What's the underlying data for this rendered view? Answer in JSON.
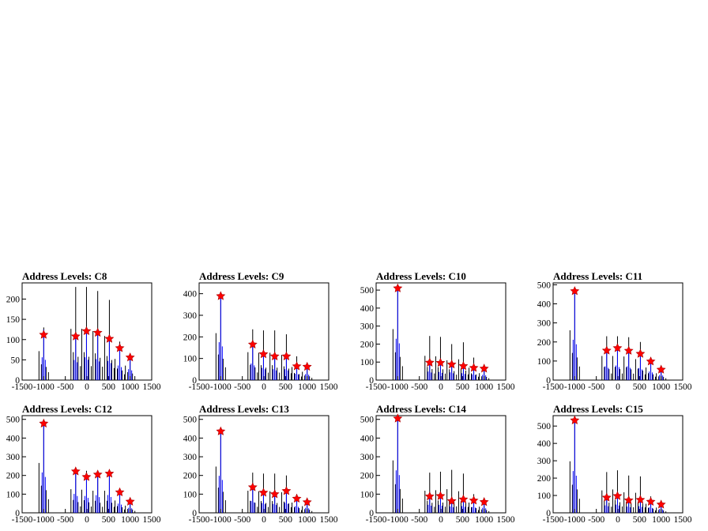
{
  "chart_data": [
    {
      "type": "bar",
      "title": "Address Levels: C8",
      "xlim": [
        -1500,
        1500
      ],
      "ylim": [
        0,
        240
      ],
      "xticks": [
        -1500,
        -1000,
        -500,
        0,
        500,
        1000,
        1500
      ],
      "yticks": [
        0,
        50,
        100,
        150,
        200
      ],
      "peaks_black": [
        [
          -1000,
          130
        ],
        [
          -260,
          230
        ],
        [
          -10,
          230
        ],
        [
          250,
          220
        ],
        [
          520,
          198
        ],
        [
          760,
          95
        ],
        [
          1000,
          65
        ]
      ],
      "peaks_blue": [
        [
          -1000,
          125
        ],
        [
          -260,
          110
        ],
        [
          -10,
          125
        ],
        [
          250,
          115
        ],
        [
          520,
          105
        ],
        [
          760,
          80
        ],
        [
          1000,
          60
        ]
      ],
      "markers": [
        [
          -1000,
          112
        ],
        [
          -260,
          108
        ],
        [
          -10,
          121
        ],
        [
          250,
          117
        ],
        [
          520,
          102
        ],
        [
          760,
          79
        ],
        [
          1000,
          56
        ]
      ]
    },
    {
      "type": "bar",
      "title": "Address Levels: C9",
      "xlim": [
        -1500,
        1500
      ],
      "ylim": [
        0,
        450
      ],
      "xticks": [
        -1500,
        -1000,
        -500,
        0,
        500,
        1000,
        1500
      ],
      "yticks": [
        0,
        100,
        200,
        300,
        400
      ],
      "peaks_black": [
        [
          -1000,
          395
        ],
        [
          -260,
          235
        ],
        [
          -10,
          230
        ],
        [
          250,
          230
        ],
        [
          520,
          212
        ],
        [
          760,
          110
        ],
        [
          1000,
          70
        ]
      ],
      "peaks_blue": [
        [
          -1000,
          390
        ],
        [
          -260,
          170
        ],
        [
          -10,
          125
        ],
        [
          250,
          112
        ],
        [
          520,
          112
        ],
        [
          760,
          65
        ],
        [
          1000,
          62
        ]
      ],
      "markers": [
        [
          -1000,
          389
        ],
        [
          -260,
          165
        ],
        [
          -10,
          120
        ],
        [
          250,
          110
        ],
        [
          520,
          110
        ],
        [
          760,
          64
        ],
        [
          1000,
          62
        ]
      ]
    },
    {
      "type": "bar",
      "title": "Address Levels: C10",
      "xlim": [
        -1500,
        1500
      ],
      "ylim": [
        0,
        540
      ],
      "xticks": [
        -1500,
        -1000,
        -500,
        0,
        500,
        1000,
        1500
      ],
      "yticks": [
        0,
        100,
        200,
        300,
        400,
        500
      ],
      "peaks_black": [
        [
          -1000,
          515
        ],
        [
          -260,
          245
        ],
        [
          -10,
          240
        ],
        [
          250,
          200
        ],
        [
          520,
          210
        ],
        [
          760,
          125
        ],
        [
          1000,
          70
        ]
      ],
      "peaks_blue": [
        [
          -1000,
          510
        ],
        [
          -260,
          105
        ],
        [
          -10,
          100
        ],
        [
          250,
          95
        ],
        [
          520,
          85
        ],
        [
          760,
          70
        ],
        [
          1000,
          65
        ]
      ],
      "markers": [
        [
          -1000,
          510
        ],
        [
          -260,
          97
        ],
        [
          -10,
          96
        ],
        [
          250,
          87
        ],
        [
          520,
          78
        ],
        [
          760,
          68
        ],
        [
          1000,
          64
        ]
      ]
    },
    {
      "type": "bar",
      "title": "Address Levels: C11",
      "xlim": [
        -1500,
        1500
      ],
      "ylim": [
        0,
        510
      ],
      "xticks": [
        -1500,
        -1000,
        -500,
        0,
        500,
        1000,
        1500
      ],
      "yticks": [
        0,
        100,
        200,
        300,
        400,
        500
      ],
      "peaks_black": [
        [
          -1000,
          475
        ],
        [
          -260,
          230
        ],
        [
          -10,
          230
        ],
        [
          250,
          225
        ],
        [
          520,
          200
        ],
        [
          760,
          120
        ],
        [
          1000,
          65
        ]
      ],
      "peaks_blue": [
        [
          -1000,
          470
        ],
        [
          -260,
          160
        ],
        [
          -10,
          170
        ],
        [
          250,
          160
        ],
        [
          520,
          140
        ],
        [
          760,
          100
        ],
        [
          1000,
          60
        ]
      ],
      "markers": [
        [
          -1000,
          467
        ],
        [
          -260,
          155
        ],
        [
          -10,
          168
        ],
        [
          250,
          154
        ],
        [
          520,
          138
        ],
        [
          760,
          98
        ],
        [
          1000,
          55
        ]
      ]
    },
    {
      "type": "bar",
      "title": "Address Levels: C12",
      "xlim": [
        -1500,
        1500
      ],
      "ylim": [
        0,
        520
      ],
      "xticks": [
        -1500,
        -1000,
        -500,
        0,
        500,
        1000,
        1500
      ],
      "yticks": [
        0,
        100,
        200,
        300,
        400,
        500
      ],
      "peaks_black": [
        [
          -1000,
          485
        ],
        [
          -260,
          230
        ],
        [
          -10,
          225
        ],
        [
          250,
          215
        ],
        [
          520,
          215
        ],
        [
          760,
          120
        ],
        [
          1000,
          70
        ]
      ],
      "peaks_blue": [
        [
          -1000,
          480
        ],
        [
          -260,
          225
        ],
        [
          -10,
          200
        ],
        [
          250,
          210
        ],
        [
          520,
          212
        ],
        [
          760,
          110
        ],
        [
          1000,
          60
        ]
      ],
      "markers": [
        [
          -1000,
          478
        ],
        [
          -260,
          222
        ],
        [
          -10,
          192
        ],
        [
          250,
          205
        ],
        [
          520,
          210
        ],
        [
          760,
          110
        ],
        [
          1000,
          60
        ]
      ]
    },
    {
      "type": "bar",
      "title": "Address Levels: C13",
      "xlim": [
        -1500,
        1500
      ],
      "ylim": [
        0,
        520
      ],
      "xticks": [
        -1500,
        -1000,
        -500,
        0,
        500,
        1000,
        1500
      ],
      "yticks": [
        0,
        100,
        200,
        300,
        400,
        500
      ],
      "peaks_black": [
        [
          -1000,
          450
        ],
        [
          -260,
          215
        ],
        [
          -10,
          210
        ],
        [
          250,
          210
        ],
        [
          520,
          200
        ],
        [
          760,
          100
        ],
        [
          1000,
          65
        ]
      ],
      "peaks_blue": [
        [
          -1000,
          440
        ],
        [
          -260,
          140
        ],
        [
          -10,
          115
        ],
        [
          250,
          105
        ],
        [
          520,
          120
        ],
        [
          760,
          80
        ],
        [
          1000,
          60
        ]
      ],
      "markers": [
        [
          -1000,
          436
        ],
        [
          -260,
          137
        ],
        [
          -10,
          108
        ],
        [
          250,
          100
        ],
        [
          520,
          117
        ],
        [
          760,
          76
        ],
        [
          1000,
          57
        ]
      ]
    },
    {
      "type": "bar",
      "title": "Address Levels: C14",
      "xlim": [
        -1500,
        1500
      ],
      "ylim": [
        0,
        520
      ],
      "xticks": [
        -1500,
        -1000,
        -500,
        0,
        500,
        1000,
        1500
      ],
      "yticks": [
        0,
        100,
        200,
        300,
        400,
        500
      ],
      "peaks_black": [
        [
          -1000,
          510
        ],
        [
          -260,
          215
        ],
        [
          -10,
          220
        ],
        [
          250,
          230
        ],
        [
          520,
          210
        ],
        [
          760,
          100
        ],
        [
          1000,
          60
        ]
      ],
      "peaks_blue": [
        [
          -1000,
          505
        ],
        [
          -260,
          95
        ],
        [
          -10,
          95
        ],
        [
          250,
          75
        ],
        [
          520,
          80
        ],
        [
          760,
          70
        ],
        [
          1000,
          60
        ]
      ],
      "markers": [
        [
          -1000,
          505
        ],
        [
          -260,
          88
        ],
        [
          -10,
          90
        ],
        [
          250,
          63
        ],
        [
          520,
          72
        ],
        [
          760,
          66
        ],
        [
          1000,
          58
        ]
      ]
    },
    {
      "type": "bar",
      "title": "Address Levels: C15",
      "xlim": [
        -1500,
        1500
      ],
      "ylim": [
        0,
        560
      ],
      "xticks": [
        -1500,
        -1000,
        -500,
        0,
        500,
        1000,
        1500
      ],
      "yticks": [
        0,
        100,
        200,
        300,
        400,
        500
      ],
      "peaks_black": [
        [
          -1000,
          540
        ],
        [
          -260,
          235
        ],
        [
          -10,
          245
        ],
        [
          250,
          215
        ],
        [
          520,
          210
        ],
        [
          760,
          95
        ],
        [
          1000,
          55
        ]
      ],
      "peaks_blue": [
        [
          -1000,
          535
        ],
        [
          -260,
          95
        ],
        [
          -10,
          105
        ],
        [
          250,
          80
        ],
        [
          520,
          85
        ],
        [
          760,
          70
        ],
        [
          1000,
          50
        ]
      ],
      "markers": [
        [
          -1000,
          533
        ],
        [
          -260,
          88
        ],
        [
          -10,
          97
        ],
        [
          250,
          72
        ],
        [
          520,
          75
        ],
        [
          760,
          64
        ],
        [
          1000,
          48
        ]
      ]
    }
  ]
}
